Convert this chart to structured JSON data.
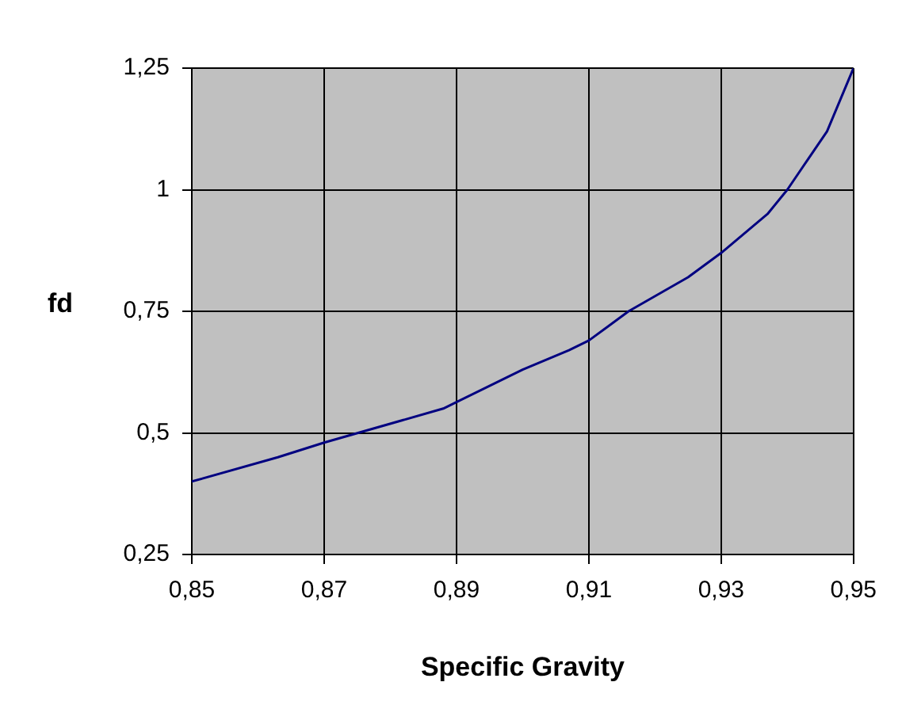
{
  "chart_data": {
    "type": "line",
    "xlabel": "Specific Gravity",
    "ylabel": "fd",
    "x": [
      0.85,
      0.863,
      0.87,
      0.888,
      0.9,
      0.907,
      0.91,
      0.916,
      0.925,
      0.93,
      0.937,
      0.94,
      0.943,
      0.946,
      0.95
    ],
    "series": [
      {
        "color": "#000080",
        "values": [
          0.4,
          0.45,
          0.48,
          0.55,
          0.63,
          0.67,
          0.69,
          0.75,
          0.82,
          0.87,
          0.95,
          1.0,
          1.06,
          1.12,
          1.25
        ]
      }
    ],
    "xlim": [
      0.85,
      0.95
    ],
    "xticks": [
      {
        "value": 0.85,
        "label": "0,85"
      },
      {
        "value": 0.87,
        "label": "0,87"
      },
      {
        "value": 0.89,
        "label": "0,89"
      },
      {
        "value": 0.91,
        "label": "0,91"
      },
      {
        "value": 0.93,
        "label": "0,93"
      },
      {
        "value": 0.95,
        "label": "0,95"
      }
    ],
    "ylim": [
      0.25,
      1.25
    ],
    "yticks": [
      {
        "value": 0.25,
        "label": "0,25"
      },
      {
        "value": 0.5,
        "label": "0,5"
      },
      {
        "value": 0.75,
        "label": "0,75"
      },
      1,
      {
        "value": 1.25,
        "label": "1,25"
      }
    ],
    "grid": true,
    "legend": false,
    "marker": "none",
    "line_style": "solid"
  }
}
